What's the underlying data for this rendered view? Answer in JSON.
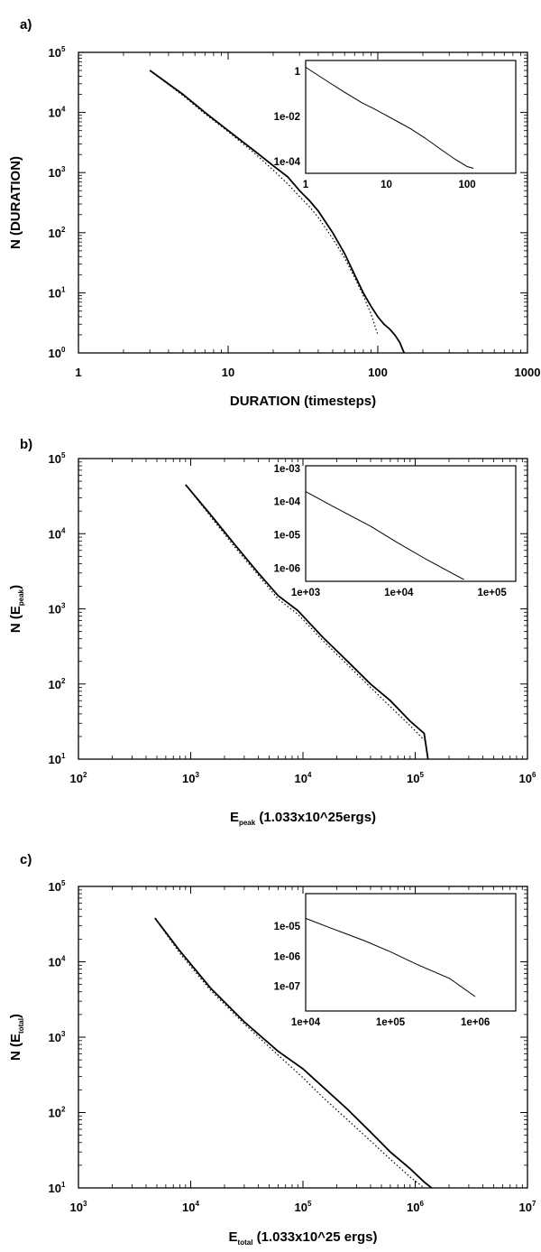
{
  "chart_data": [
    {
      "type": "line",
      "panel_label": "a)",
      "xlabel": "DURATION (timesteps)",
      "ylabel": "N (DURATION)",
      "xscale": "log",
      "yscale": "log",
      "xlim": [
        1,
        1000
      ],
      "ylim": [
        1,
        100000
      ],
      "x_ticks": [
        {
          "base": "1",
          "exp": ""
        },
        {
          "base": "10",
          "exp": ""
        },
        {
          "base": "100",
          "exp": ""
        },
        {
          "base": "1000",
          "exp": ""
        }
      ],
      "y_ticks": [
        {
          "base": "10",
          "exp": "5"
        },
        {
          "base": "10",
          "exp": "4"
        },
        {
          "base": "10",
          "exp": "3"
        },
        {
          "base": "10",
          "exp": "2"
        },
        {
          "base": "10",
          "exp": "1"
        },
        {
          "base": "10",
          "exp": "0"
        }
      ],
      "series": [
        {
          "style": "solid",
          "x": [
            3,
            5,
            7,
            10,
            15,
            20,
            25,
            30,
            35,
            40,
            50,
            60,
            70,
            80,
            90,
            100,
            110,
            120,
            130,
            140,
            150
          ],
          "y": [
            50000,
            20000,
            10000,
            5000,
            2300,
            1300,
            850,
            500,
            340,
            230,
            100,
            45,
            20,
            10,
            6,
            4,
            3,
            2.5,
            2,
            1.5,
            1
          ]
        },
        {
          "style": "dotted",
          "x": [
            3,
            5,
            7,
            10,
            15,
            20,
            25,
            30,
            35,
            40,
            50,
            60,
            70,
            80,
            90,
            100
          ],
          "y": [
            50000,
            19000,
            9500,
            4800,
            2100,
            1100,
            650,
            400,
            270,
            180,
            80,
            38,
            18,
            9,
            4.5,
            2
          ]
        }
      ],
      "inset": {
        "xscale": "log",
        "yscale": "log",
        "xlim": [
          1,
          400
        ],
        "ylim": [
          3e-05,
          3
        ],
        "x_ticks": [
          {
            "v": 1,
            "label": "1"
          },
          {
            "v": 10,
            "label": "10"
          },
          {
            "v": 100,
            "label": "100"
          }
        ],
        "y_ticks": [
          {
            "v": 1,
            "label": "1"
          },
          {
            "v": 0.01,
            "label": "1e-02"
          },
          {
            "v": 0.0001,
            "label": "1e-04"
          }
        ],
        "series": [
          {
            "x": [
              1,
              2,
              3,
              5,
              7,
              10,
              15,
              20,
              30,
              50,
              70,
              100,
              120
            ],
            "y": [
              1.5,
              0.3,
              0.12,
              0.04,
              0.022,
              0.011,
              0.005,
              0.0028,
              0.0011,
              0.0003,
              0.00013,
              6e-05,
              5e-05
            ]
          }
        ]
      }
    },
    {
      "type": "line",
      "panel_label": "b)",
      "xlabel": {
        "main": "E",
        "sub": "peak",
        "rest": " (1.033x10^25ergs)"
      },
      "ylabel": {
        "main": "N (E",
        "sub": "peak",
        "rest": ")"
      },
      "xscale": "log",
      "yscale": "log",
      "xlim": [
        100,
        1000000
      ],
      "ylim": [
        10,
        100000
      ],
      "x_ticks": [
        {
          "base": "10",
          "exp": "2"
        },
        {
          "base": "10",
          "exp": "3"
        },
        {
          "base": "10",
          "exp": "4"
        },
        {
          "base": "10",
          "exp": "5"
        },
        {
          "base": "10",
          "exp": "6"
        }
      ],
      "y_ticks": [
        {
          "base": "10",
          "exp": "5"
        },
        {
          "base": "10",
          "exp": "4"
        },
        {
          "base": "10",
          "exp": "3"
        },
        {
          "base": "10",
          "exp": "2"
        },
        {
          "base": "10",
          "exp": "1"
        }
      ],
      "series": [
        {
          "style": "solid",
          "x": [
            900,
            1500,
            2500,
            4000,
            6000,
            9000,
            15000,
            25000,
            40000,
            60000,
            90000,
            120000,
            130000
          ],
          "y": [
            45000,
            18000,
            7000,
            3000,
            1500,
            950,
            420,
            200,
            100,
            60,
            32,
            22,
            10
          ]
        },
        {
          "style": "dotted",
          "x": [
            900,
            1500,
            2500,
            4000,
            6000,
            9000,
            15000,
            25000,
            40000,
            60000,
            90000,
            120000
          ],
          "y": [
            45000,
            17000,
            6500,
            2800,
            1350,
            850,
            380,
            180,
            90,
            50,
            28,
            18
          ]
        }
      ],
      "inset": {
        "xscale": "log",
        "yscale": "log",
        "xlim": [
          1000,
          180000
        ],
        "ylim": [
          4e-07,
          0.0012
        ],
        "x_ticks": [
          {
            "v": 1000,
            "label": "1e+03"
          },
          {
            "v": 10000,
            "label": "1e+04"
          },
          {
            "v": 100000,
            "label": "1e+05"
          }
        ],
        "y_ticks": [
          {
            "v": 0.001,
            "label": "1e-03"
          },
          {
            "v": 0.0001,
            "label": "1e-04"
          },
          {
            "v": 1e-05,
            "label": "1e-05"
          },
          {
            "v": 1e-06,
            "label": "1e-06"
          }
        ],
        "series": [
          {
            "x": [
              1000,
              2000,
              5000,
              10000,
              20000,
              50000
            ],
            "y": [
              0.0002,
              7e-05,
              1.8e-05,
              5.5e-06,
              1.8e-06,
              4.5e-07
            ]
          }
        ]
      }
    },
    {
      "type": "line",
      "panel_label": "c)",
      "xlabel": {
        "main": "E",
        "sub": "total",
        "rest": " (1.033x10^25 ergs)"
      },
      "ylabel": {
        "main": "N (E",
        "sub": "total",
        "rest": ")"
      },
      "xscale": "log",
      "yscale": "log",
      "xlim": [
        1000,
        10000000
      ],
      "ylim": [
        10,
        100000
      ],
      "x_ticks": [
        {
          "base": "10",
          "exp": "3"
        },
        {
          "base": "10",
          "exp": "4"
        },
        {
          "base": "10",
          "exp": "5"
        },
        {
          "base": "10",
          "exp": "6"
        },
        {
          "base": "10",
          "exp": "7"
        }
      ],
      "y_ticks": [
        {
          "base": "10",
          "exp": "5"
        },
        {
          "base": "10",
          "exp": "4"
        },
        {
          "base": "10",
          "exp": "3"
        },
        {
          "base": "10",
          "exp": "2"
        },
        {
          "base": "10",
          "exp": "1"
        }
      ],
      "series": [
        {
          "style": "solid",
          "x": [
            4800,
            8000,
            15000,
            30000,
            60000,
            100000,
            150000,
            250000,
            400000,
            600000,
            900000,
            1200000,
            1400000
          ],
          "y": [
            38000,
            14000,
            4500,
            1600,
            650,
            380,
            220,
            110,
            55,
            30,
            18,
            12,
            10
          ]
        },
        {
          "style": "dotted",
          "x": [
            4800,
            8000,
            15000,
            30000,
            60000,
            100000,
            150000,
            250000,
            400000,
            600000,
            900000,
            1200000
          ],
          "y": [
            38000,
            13000,
            4200,
            1500,
            580,
            290,
            160,
            80,
            42,
            24,
            14,
            10
          ]
        }
      ],
      "inset": {
        "xscale": "log",
        "yscale": "log",
        "xlim": [
          10000,
          3000000
        ],
        "ylim": [
          1.5e-08,
          0.00012
        ],
        "x_ticks": [
          {
            "v": 10000,
            "label": "1e+04"
          },
          {
            "v": 100000,
            "label": "1e+05"
          },
          {
            "v": 1000000,
            "label": "1e+06"
          }
        ],
        "y_ticks": [
          {
            "v": 1e-05,
            "label": "1e-05"
          },
          {
            "v": 1e-06,
            "label": "1e-06"
          },
          {
            "v": 1e-07,
            "label": "1e-07"
          }
        ],
        "series": [
          {
            "x": [
              10000,
              20000,
              50000,
              100000,
              200000,
              500000,
              1000000
            ],
            "y": [
              1.8e-05,
              8.5e-06,
              3.2e-06,
              1.4e-06,
              5.5e-07,
              1.8e-07,
              4.5e-08
            ]
          }
        ]
      }
    }
  ]
}
